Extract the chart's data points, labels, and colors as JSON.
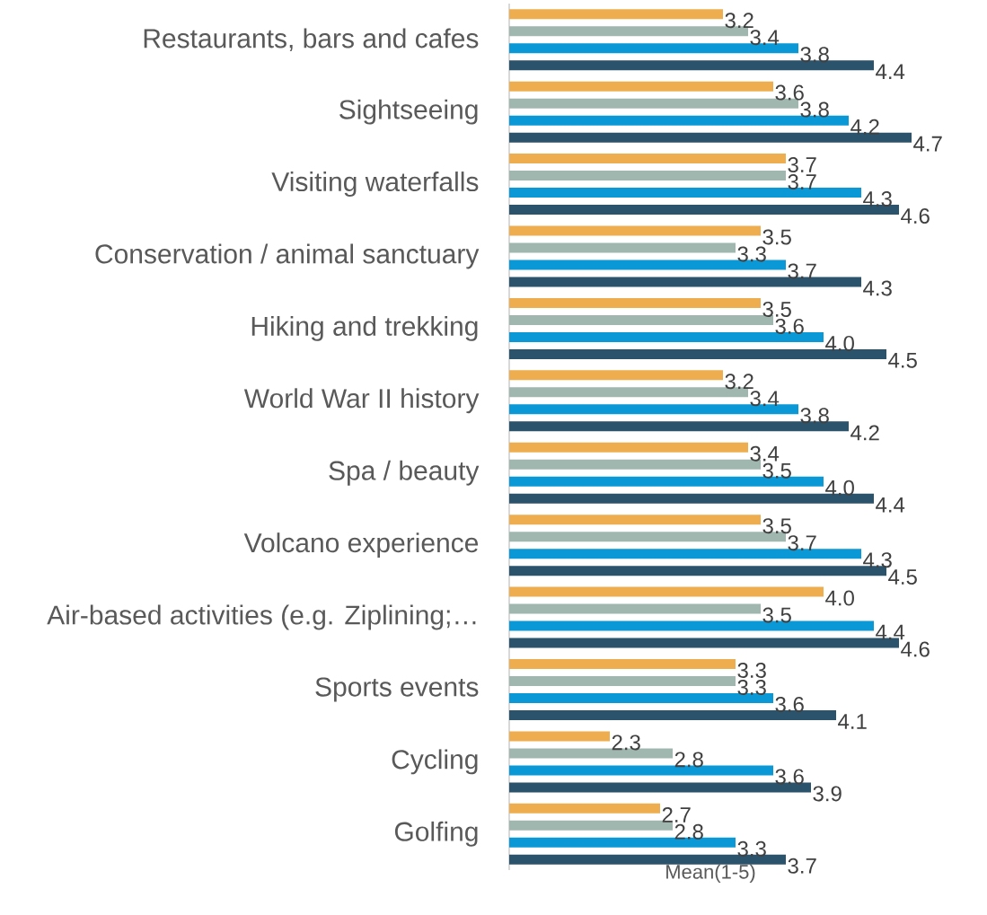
{
  "chart_data": {
    "type": "bar",
    "orientation": "horizontal",
    "xlabel": "Mean(1-5)",
    "categories": [
      "Restaurants, bars and cafes",
      "Sightseeing",
      "Visiting waterfalls",
      "Conservation / animal sanctuary",
      "Hiking and trekking",
      "World War II history",
      "Spa / beauty",
      "Volcano experience",
      "Air-based activities (e.g. Ziplining;…",
      "Sports events",
      "Cycling",
      "Golfing"
    ],
    "series": [
      {
        "color": "#eeae4f",
        "values": [
          3.2,
          3.6,
          3.7,
          3.5,
          3.5,
          3.2,
          3.4,
          3.5,
          4.0,
          3.3,
          2.3,
          2.7
        ],
        "value_labels": [
          "3.2",
          "3.6",
          "3.7",
          "3.5",
          "3.5",
          "3.2",
          "3.4",
          "3.5",
          "4.0",
          "3.3",
          "2.3",
          "2.7"
        ]
      },
      {
        "color": "#a0b7b0",
        "values": [
          3.4,
          3.8,
          3.7,
          3.3,
          3.6,
          3.4,
          3.5,
          3.7,
          3.5,
          3.3,
          2.8,
          2.8
        ],
        "value_labels": [
          "3.4",
          "3.8",
          "3.7",
          "3.3",
          "3.6",
          "3.4",
          "3.5",
          "3.7",
          "3.5",
          "3.3",
          "2.8",
          "2.8"
        ]
      },
      {
        "color": "#0a98d6",
        "values": [
          3.8,
          4.2,
          4.3,
          3.7,
          4.0,
          3.8,
          4.0,
          4.3,
          4.4,
          3.6,
          3.6,
          3.3
        ],
        "value_labels": [
          "3.8",
          "4.2",
          "4.3",
          "3.7",
          "4.0",
          "3.8",
          "4.0",
          "4.3",
          "4.4",
          "3.6",
          "3.6",
          "3.3"
        ]
      },
      {
        "color": "#2b536b",
        "values": [
          4.4,
          4.7,
          4.6,
          4.3,
          4.5,
          4.2,
          4.4,
          4.5,
          4.6,
          4.1,
          3.9,
          3.7
        ],
        "value_labels": [
          "4.4",
          "4.7",
          "4.6",
          "4.3",
          "4.5",
          "4.2",
          "4.4",
          "4.5",
          "4.6",
          "4.1",
          "3.9",
          "3.7"
        ]
      }
    ],
    "xlim": [
      1.5,
      4.7
    ]
  }
}
